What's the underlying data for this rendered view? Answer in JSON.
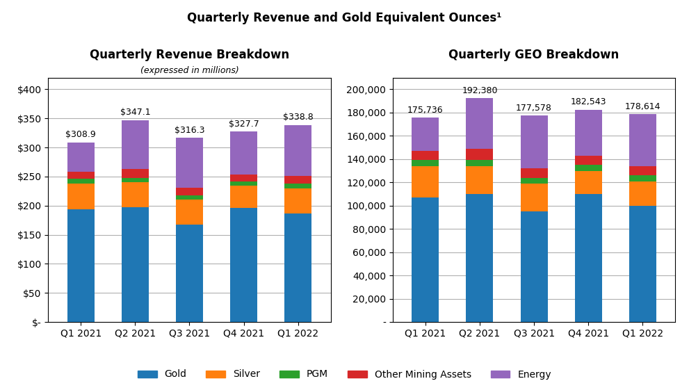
{
  "title": "Quarterly Revenue and Gold Equivalent Ounces¹",
  "chart_data": [
    {
      "type": "bar",
      "stacked": true,
      "grid": true,
      "legend": "lower center",
      "title": "Quarterly Revenue Breakdown",
      "subtitle": "(expressed in millions)",
      "categories": [
        "Q1 2021",
        "Q2 2021",
        "Q3 2021",
        "Q4 2021",
        "Q1 2022"
      ],
      "series": [
        {
          "name": "Gold",
          "values": [
            194.0,
            197.0,
            168.0,
            196.0,
            187.0
          ]
        },
        {
          "name": "Silver",
          "values": [
            44.0,
            43.0,
            42.0,
            38.0,
            43.0
          ]
        },
        {
          "name": "PGM",
          "values": [
            8.0,
            8.0,
            8.0,
            7.0,
            8.0
          ]
        },
        {
          "name": "Other Mining Assets",
          "values": [
            12.0,
            15.0,
            13.0,
            12.0,
            13.0
          ]
        },
        {
          "name": "Energy",
          "values": [
            50.9,
            84.1,
            85.3,
            74.7,
            87.8
          ]
        }
      ],
      "totals": [
        308.9,
        347.1,
        316.3,
        327.7,
        338.8
      ],
      "total_labels": [
        "$308.9",
        "$347.1",
        "$316.3",
        "$327.7",
        "$338.8"
      ],
      "ylim": [
        0,
        420
      ],
      "yticks": [
        {
          "value": 0,
          "label": "$-"
        },
        {
          "value": 50,
          "label": "$50"
        },
        {
          "value": 100,
          "label": "$100"
        },
        {
          "value": 150,
          "label": "$150"
        },
        {
          "value": 200,
          "label": "$200"
        },
        {
          "value": 250,
          "label": "$250"
        },
        {
          "value": 300,
          "label": "$300"
        },
        {
          "value": 350,
          "label": "$350"
        },
        {
          "value": 400,
          "label": "$400"
        }
      ]
    },
    {
      "type": "bar",
      "stacked": true,
      "grid": true,
      "title": "Quarterly GEO Breakdown",
      "categories": [
        "Q1 2021",
        "Q2 2021",
        "Q3 2021",
        "Q4 2021",
        "Q1 2022"
      ],
      "series": [
        {
          "name": "Gold",
          "values": [
            107000,
            110000,
            95000,
            110000,
            100000
          ]
        },
        {
          "name": "Silver",
          "values": [
            27000,
            24000,
            24000,
            20000,
            21000
          ]
        },
        {
          "name": "PGM",
          "values": [
            5000,
            5000,
            5000,
            5000,
            5000
          ]
        },
        {
          "name": "Other Mining Assets",
          "values": [
            8000,
            10000,
            8000,
            8000,
            8000
          ]
        },
        {
          "name": "Energy",
          "values": [
            28736,
            43380,
            45578,
            39543,
            44614
          ]
        }
      ],
      "totals": [
        175736,
        192380,
        177578,
        182543,
        178614
      ],
      "total_labels": [
        "175,736",
        "192,380",
        "177,578",
        "182,543",
        "178,614"
      ],
      "ylim": [
        0,
        210000
      ],
      "yticks": [
        {
          "value": 0,
          "label": "-"
        },
        {
          "value": 20000,
          "label": "20,000"
        },
        {
          "value": 40000,
          "label": "40,000"
        },
        {
          "value": 60000,
          "label": "60,000"
        },
        {
          "value": 80000,
          "label": "80,000"
        },
        {
          "value": 100000,
          "label": "100,000"
        },
        {
          "value": 120000,
          "label": "120,000"
        },
        {
          "value": 140000,
          "label": "140,000"
        },
        {
          "value": 160000,
          "label": "160,000"
        },
        {
          "value": 180000,
          "label": "180,000"
        },
        {
          "value": 200000,
          "label": "200,000"
        }
      ]
    }
  ]
}
